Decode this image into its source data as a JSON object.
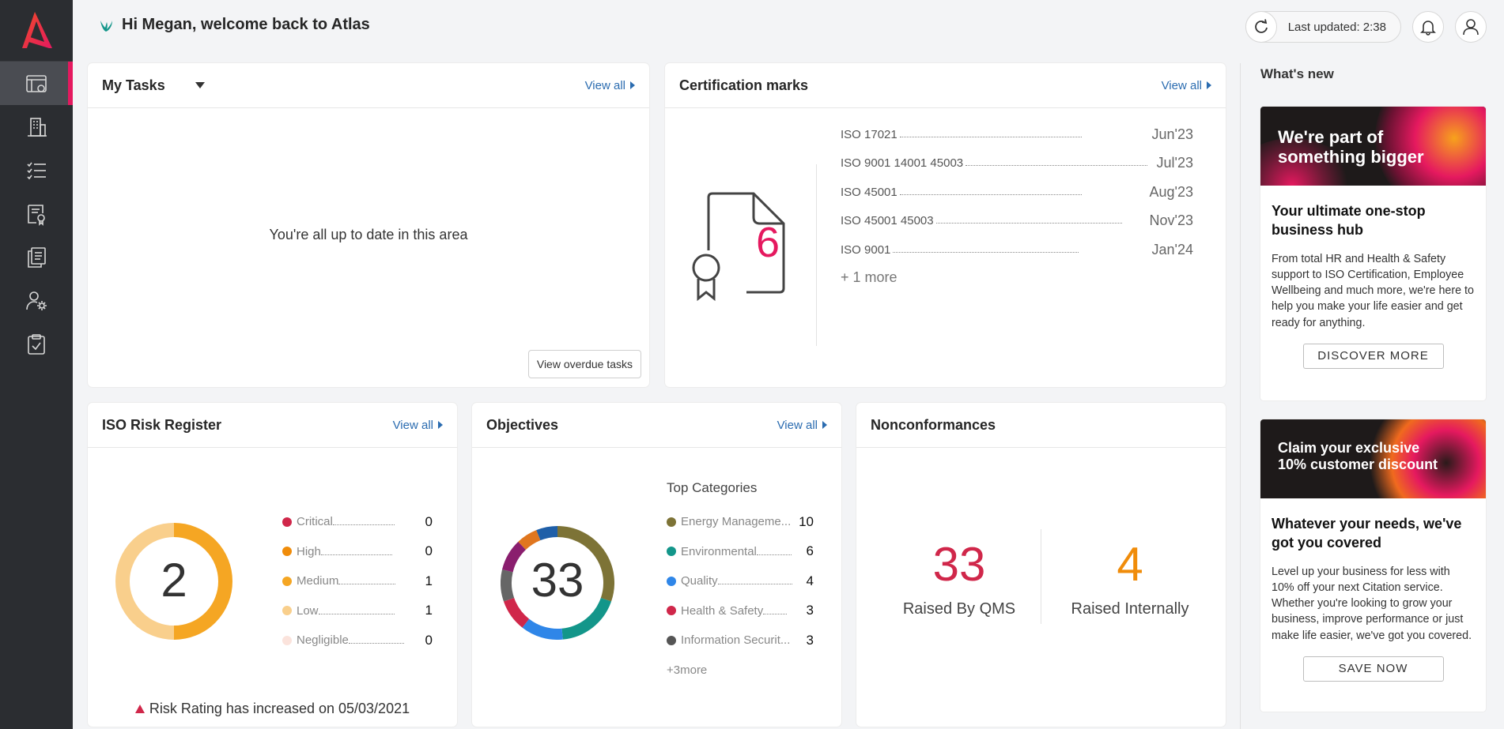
{
  "header": {
    "greeting": "Hi Megan, welcome back to Atlas",
    "last_updated": "Last updated: 2:38"
  },
  "sidebar": {
    "items": [
      {
        "icon": "dashboard-icon",
        "active": true
      },
      {
        "icon": "building-icon"
      },
      {
        "icon": "checklist-icon"
      },
      {
        "icon": "certificate-doc-icon"
      },
      {
        "icon": "documents-icon"
      },
      {
        "icon": "user-settings-icon"
      },
      {
        "icon": "clipboard-check-icon"
      }
    ]
  },
  "tasks": {
    "title": "My Tasks",
    "view_all": "View all",
    "empty_text": "You're all up to date in this area",
    "overdue_button": "View overdue tasks"
  },
  "cert": {
    "title": "Certification marks",
    "view_all": "View all",
    "count": "6",
    "rows": [
      {
        "name": "ISO 17021",
        "date": "Jun'23"
      },
      {
        "name": "ISO 9001 14001 45003",
        "date": "Jul'23"
      },
      {
        "name": "ISO 45001",
        "date": "Aug'23"
      },
      {
        "name": "ISO 45001 45003",
        "date": "Nov'23"
      },
      {
        "name": "ISO 9001",
        "date": "Jan'24"
      }
    ],
    "more": "+ 1 more"
  },
  "risk": {
    "title": "ISO Risk Register",
    "view_all": "View all",
    "total": "2",
    "rows": [
      {
        "label": "Critical",
        "value": "0",
        "color": "#d0274a"
      },
      {
        "label": "High",
        "value": "0",
        "color": "#f08c0a"
      },
      {
        "label": "Medium",
        "value": "1",
        "color": "#f5a623"
      },
      {
        "label": "Low",
        "value": "1",
        "color": "#f9cf8c"
      },
      {
        "label": "Negligible",
        "value": "0",
        "color": "#fbe3dc"
      }
    ],
    "note": "Risk Rating has increased on 05/03/2021",
    "donut": [
      {
        "value": 1,
        "color": "#f5a623"
      },
      {
        "value": 1,
        "color": "#f9cf8c"
      }
    ]
  },
  "objectives": {
    "title": "Objectives",
    "view_all": "View all",
    "total": "33",
    "categories_title": "Top Categories",
    "rows": [
      {
        "label": "Energy Manageme...",
        "value": "10",
        "color": "#7d7336"
      },
      {
        "label": "Environmental",
        "value": "6",
        "color": "#13968a"
      },
      {
        "label": "Quality",
        "value": "4",
        "color": "#2f86e8"
      },
      {
        "label": "Health & Safety",
        "value": "3",
        "color": "#d0274a"
      },
      {
        "label": "Information Securit...",
        "value": "3",
        "color": "#555555"
      }
    ],
    "more": "+3more",
    "donut": [
      {
        "value": 10,
        "color": "#7d7336"
      },
      {
        "value": 6,
        "color": "#13968a"
      },
      {
        "value": 4,
        "color": "#2f86e8"
      },
      {
        "value": 3,
        "color": "#d0274a"
      },
      {
        "value": 3,
        "color": "#666666"
      },
      {
        "value": 3,
        "color": "#8a1e6e"
      },
      {
        "value": 2,
        "color": "#e0761f"
      },
      {
        "value": 2,
        "color": "#1f5fa8"
      }
    ]
  },
  "nonconf": {
    "title": "Nonconformances",
    "qms_value": "33",
    "qms_label": "Raised By QMS",
    "internal_value": "4",
    "internal_label": "Raised Internally",
    "qms_color": "#d0274a",
    "internal_color": "#f08c0a"
  },
  "whats_new": {
    "title": "What's new",
    "cards": [
      {
        "banner": "We're part of\nsomething bigger",
        "heading": "Your ultimate one-stop business hub",
        "text": "From total HR and Health & Safety support to ISO Certification, Employee Wellbeing and much more, we're here to help you make your life easier and get ready for anything.",
        "button": "DISCOVER MORE"
      },
      {
        "banner": "Claim your exclusive\n10% customer discount",
        "heading": "Whatever your needs, we've got you covered",
        "text": "Level up your business for less with 10% off your next Citation service. Whether you're looking to grow your business, improve performance or just make life easier, we've got you covered.",
        "button": "SAVE NOW"
      }
    ]
  }
}
